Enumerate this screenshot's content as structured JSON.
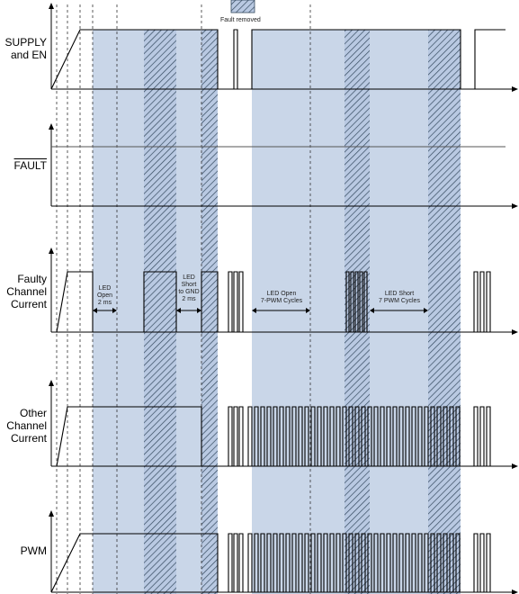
{
  "legend": {
    "label": "Fault removed"
  },
  "rows": {
    "supply": {
      "line1": "SUPPLY",
      "line2": "and EN"
    },
    "fault": {
      "label": "FAULT"
    },
    "faulty": {
      "line1": "Faulty",
      "line2": "Channel",
      "line3": "Current"
    },
    "other": {
      "line1": "Other",
      "line2": "Channel",
      "line3": "Current"
    },
    "pwm": {
      "label": "PWM"
    }
  },
  "annotations": {
    "led_open_2ms": {
      "line1": "LED",
      "line2": "Open",
      "line3": "2 ms"
    },
    "led_short_gnd": {
      "line1": "LED",
      "line2": "Short",
      "line3": "to GND",
      "line4": "2 ms"
    },
    "led_open_7pwm": {
      "line1": "LED Open",
      "line2": "7-PWM Cycles"
    },
    "led_short_7pwm": {
      "line1": "LED Short",
      "line2": "7 PWM Cycles"
    }
  },
  "colors": {
    "shade": "#c9d6e8",
    "hatch_bg": "#b9c9e2",
    "hatch_line": "#34495e",
    "trace": "#000000",
    "guide": "#333333"
  }
}
